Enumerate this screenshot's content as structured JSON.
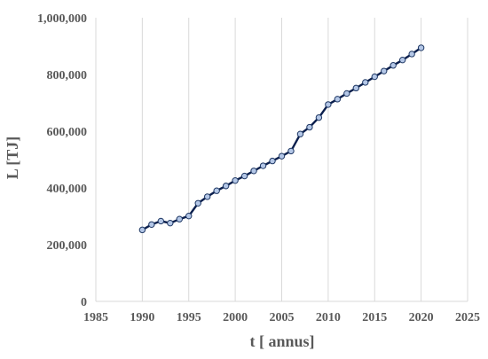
{
  "chart_data": {
    "type": "line",
    "title": "",
    "xlabel": "t [ annus]",
    "ylabel": "L [TJ]",
    "xlim": [
      1985,
      2025
    ],
    "ylim": [
      0,
      1000000
    ],
    "x_ticks": [
      "1985",
      "1990",
      "1995",
      "2000",
      "2005",
      "2010",
      "2015",
      "2020",
      "2025"
    ],
    "y_ticks": [
      "0",
      "200,000",
      "400,000",
      "600,000",
      "800,000",
      "1,000,000"
    ],
    "grid": "vertical",
    "legend": "none",
    "colors": {
      "line": "#0b1f4d",
      "marker_fill": "#b4c7e7",
      "marker_edge": "#1f3864",
      "grid": "#d9d9d9",
      "text": "#595959"
    },
    "series": [
      {
        "x": [
          1990,
          1991,
          1992,
          1993,
          1994,
          1995,
          1996,
          1997,
          1998,
          1999,
          2000,
          2001,
          2002,
          2003,
          2004,
          2005,
          2006,
          2007,
          2008,
          2009,
          2010,
          2011,
          2012,
          2013,
          2014,
          2015,
          2016,
          2017,
          2018,
          2019,
          2020
        ],
        "values": [
          252000,
          271000,
          283000,
          276000,
          290000,
          301000,
          346000,
          369000,
          390000,
          407000,
          426000,
          442000,
          460000,
          478000,
          495000,
          512000,
          530000,
          590000,
          614000,
          648000,
          694000,
          713000,
          733000,
          752000,
          772000,
          792000,
          812000,
          832000,
          851000,
          872000,
          894000
        ]
      }
    ]
  }
}
